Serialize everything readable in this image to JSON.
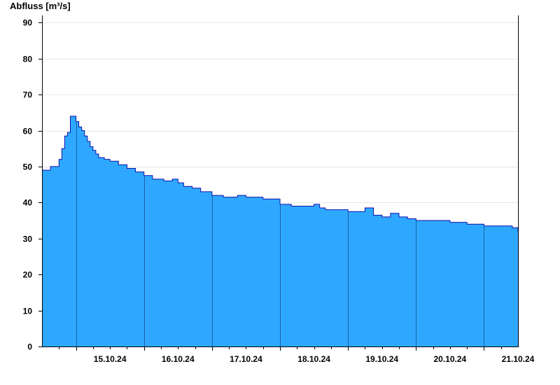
{
  "chart_data": {
    "type": "area",
    "ylabel": "Abfluss [m³/s]",
    "ylim": [
      0,
      92
    ],
    "yticks": [
      0,
      10,
      20,
      30,
      40,
      50,
      60,
      70,
      80,
      90
    ],
    "xlim": [
      "14.10.24 12:00",
      "21.10.24 12:00"
    ],
    "day_labels": [
      "15.10.24",
      "16.10.24",
      "17.10.24",
      "18.10.24",
      "19.10.24",
      "20.10.24",
      "21.10.24"
    ],
    "grid": true,
    "colors": {
      "fill": "#2ea8ff",
      "line": "#1111aa",
      "grid": "#e6e6e6",
      "axis": "#000000"
    },
    "series": [
      {
        "x": [
          "14.10.24 12:00",
          "14.10.24 14:00",
          "14.10.24 15:00",
          "14.10.24 17:00",
          "14.10.24 18:00",
          "14.10.24 19:00",
          "14.10.24 20:00",
          "14.10.24 21:00",
          "14.10.24 22:00",
          "15.10.24 00:00",
          "15.10.24 01:00",
          "15.10.24 02:00",
          "15.10.24 03:00",
          "15.10.24 04:00",
          "15.10.24 05:00",
          "15.10.24 06:00",
          "15.10.24 07:00",
          "15.10.24 08:00",
          "15.10.24 10:00",
          "15.10.24 12:00",
          "15.10.24 15:00",
          "15.10.24 18:00",
          "15.10.24 21:00",
          "16.10.24 00:00",
          "16.10.24 03:00",
          "16.10.24 07:00",
          "16.10.24 10:00",
          "16.10.24 12:00",
          "16.10.24 14:00",
          "16.10.24 17:00",
          "16.10.24 20:00",
          "17.10.24 00:00",
          "17.10.24 04:00",
          "17.10.24 09:00",
          "17.10.24 12:00",
          "17.10.24 18:00",
          "18.10.24 00:00",
          "18.10.24 04:00",
          "18.10.24 09:00",
          "18.10.24 12:00",
          "18.10.24 14:00",
          "18.10.24 16:00",
          "18.10.24 21:00",
          "19.10.24 00:00",
          "19.10.24 06:00",
          "19.10.24 09:00",
          "19.10.24 12:00",
          "19.10.24 15:00",
          "19.10.24 18:00",
          "19.10.24 21:00",
          "20.10.24 00:00",
          "20.10.24 06:00",
          "20.10.24 12:00",
          "20.10.24 18:00",
          "21.10.24 00:00",
          "21.10.24 06:00",
          "21.10.24 10:00",
          "21.10.24 12:00"
        ],
        "y": [
          49,
          49,
          50,
          50,
          52,
          55,
          58.5,
          59.5,
          64,
          62.5,
          61,
          60,
          58.5,
          57,
          55.5,
          54.5,
          53.5,
          52.5,
          52,
          51.5,
          50.5,
          49.5,
          48.5,
          47.5,
          46.5,
          46,
          46.5,
          45.5,
          44.5,
          44,
          43,
          42,
          41.5,
          42,
          41.5,
          41,
          39.5,
          39,
          39,
          39.5,
          38.5,
          38,
          38,
          37.5,
          38.5,
          36.5,
          36,
          37,
          36,
          35.5,
          35,
          35,
          34.5,
          34,
          33.5,
          33.5,
          33,
          32
        ]
      }
    ]
  }
}
